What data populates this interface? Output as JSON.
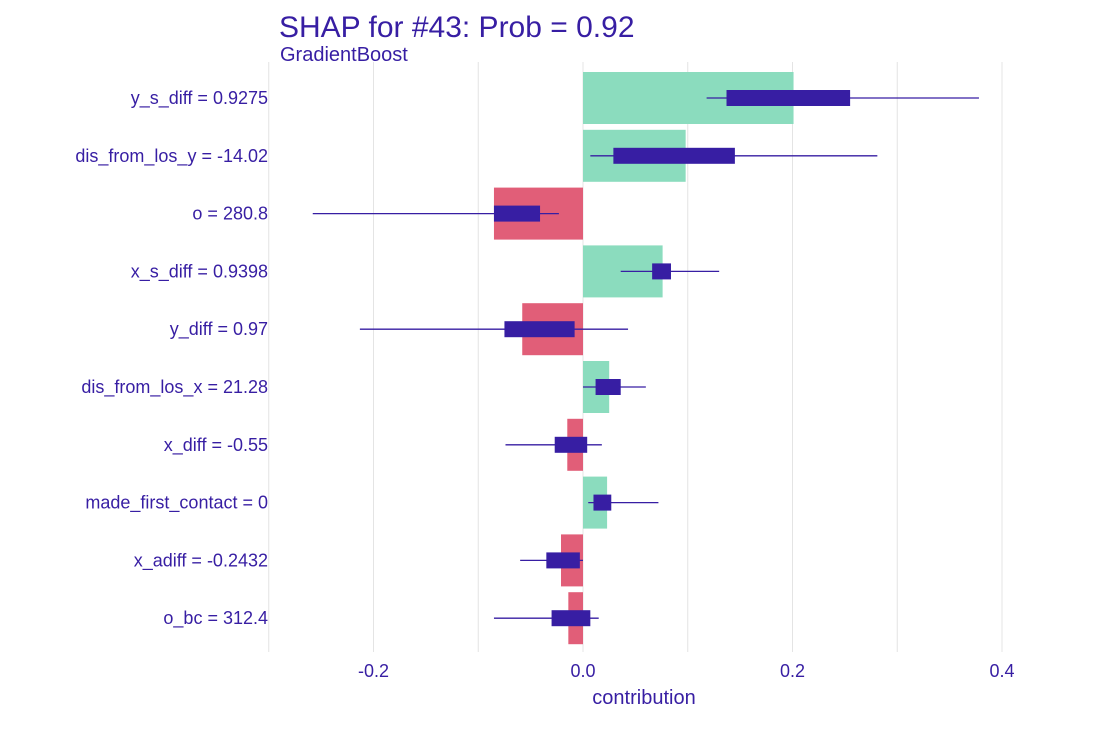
{
  "chart_data": {
    "type": "bar",
    "title": "SHAP for #43: Prob = 0.92",
    "subtitle": "GradientBoost",
    "xlabel": "contribution",
    "xlim": [
      -0.3,
      0.42
    ],
    "xticks": [
      -0.2,
      0.0,
      0.2,
      0.4
    ],
    "xtick_labels": [
      "-0.2",
      "0.0",
      "0.2",
      "0.4"
    ],
    "grid": "vertical",
    "colors": {
      "positive": "#8bdcbe",
      "negative": "#e15e78",
      "boxplot": "#371ea3",
      "text": "#371ea3"
    },
    "features": [
      {
        "label": "y_s_diff = 0.9275",
        "value": 0.201,
        "whisker": [
          0.118,
          0.378
        ],
        "box": [
          0.137,
          0.255
        ]
      },
      {
        "label": "dis_from_los_y = -14.02",
        "value": 0.098,
        "whisker": [
          0.007,
          0.281
        ],
        "box": [
          0.029,
          0.145
        ]
      },
      {
        "label": "o = 280.8",
        "value": -0.085,
        "whisker": [
          -0.258,
          -0.023
        ],
        "box": [
          -0.085,
          -0.041
        ]
      },
      {
        "label": "x_s_diff = 0.9398",
        "value": 0.076,
        "whisker": [
          0.036,
          0.13
        ],
        "box": [
          0.066,
          0.084
        ]
      },
      {
        "label": "y_diff = 0.97",
        "value": -0.058,
        "whisker": [
          -0.213,
          0.043
        ],
        "box": [
          -0.075,
          -0.008
        ]
      },
      {
        "label": "dis_from_los_x = 21.28",
        "value": 0.025,
        "whisker": [
          0.0,
          0.06
        ],
        "box": [
          0.012,
          0.036
        ]
      },
      {
        "label": "x_diff = -0.55",
        "value": -0.015,
        "whisker": [
          -0.074,
          0.018
        ],
        "box": [
          -0.027,
          0.004
        ]
      },
      {
        "label": "made_first_contact = 0",
        "value": 0.023,
        "whisker": [
          0.005,
          0.072
        ],
        "box": [
          0.01,
          0.027
        ]
      },
      {
        "label": "x_adiff = -0.2432",
        "value": -0.021,
        "whisker": [
          -0.06,
          0.0
        ],
        "box": [
          -0.035,
          -0.003
        ]
      },
      {
        "label": "o_bc = 312.4",
        "value": -0.014,
        "whisker": [
          -0.085,
          0.015
        ],
        "box": [
          -0.03,
          0.007
        ]
      }
    ]
  }
}
